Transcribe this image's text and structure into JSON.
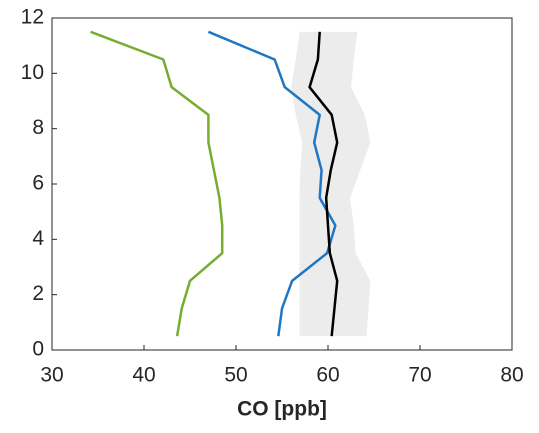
{
  "chart_data": {
    "type": "profile",
    "xlabel": "CO [ppb]",
    "y": [
      0.5,
      1.5,
      2.5,
      3.5,
      4.5,
      5.5,
      6.5,
      7.5,
      8.5,
      9.5,
      10.5,
      11.5
    ],
    "series": [
      {
        "color": "#77ac30",
        "values": [
          43.6,
          44.1,
          45.0,
          48.5,
          48.5,
          48.2,
          47.6,
          47.0,
          47.0,
          43.0,
          42.1,
          34.2
        ]
      },
      {
        "color": "#1f77c4",
        "values": [
          54.6,
          55.0,
          56.1,
          59.9,
          60.8,
          59.1,
          59.3,
          58.5,
          59.1,
          55.3,
          54.2,
          47.0
        ]
      },
      {
        "color": "#000000",
        "values": [
          60.4,
          60.7,
          61.0,
          60.2,
          60.0,
          59.8,
          60.3,
          61.0,
          60.4,
          58.0,
          58.9,
          59.1
        ]
      }
    ],
    "band": {
      "color": "#ececec",
      "lower": [
        56.9,
        56.9,
        56.9,
        56.9,
        56.9,
        56.9,
        57.0,
        57.2,
        56.5,
        56.0,
        56.5,
        56.9
      ],
      "upper": [
        64.2,
        64.4,
        64.6,
        63.0,
        62.8,
        62.4,
        63.5,
        64.6,
        64.0,
        62.5,
        62.8,
        63.2
      ]
    },
    "xlim": [
      30,
      80
    ],
    "xticks": [
      30,
      40,
      50,
      60,
      70,
      80
    ],
    "ylim": [
      0,
      12
    ],
    "yticks": [
      0,
      2,
      4,
      6,
      8,
      10,
      12
    ]
  }
}
